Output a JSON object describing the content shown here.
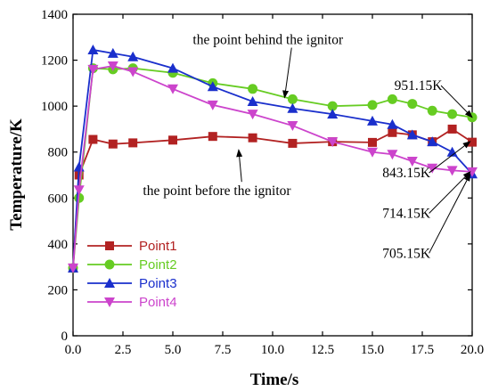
{
  "chart_data": {
    "type": "line",
    "xlabel": "Time/s",
    "ylabel": "Temperature/K",
    "xlim": [
      0,
      20
    ],
    "ylim": [
      0,
      1400
    ],
    "xticks": [
      0.0,
      2.5,
      5.0,
      7.5,
      10.0,
      12.5,
      15.0,
      17.5,
      20.0
    ],
    "xtick_labels": [
      "0.0",
      "2.5",
      "5.0",
      "7.5",
      "10.0",
      "12.5",
      "15.0",
      "17.5",
      "20.0"
    ],
    "yticks": [
      0,
      200,
      400,
      600,
      800,
      1000,
      1200,
      1400
    ],
    "ytick_labels": [
      "0",
      "200",
      "400",
      "600",
      "800",
      "1000",
      "1200",
      "1400"
    ],
    "grid": false,
    "legend_position": "bottom-left",
    "series": [
      {
        "name": "Point1",
        "color": "#b22222",
        "marker": "square",
        "x": [
          0,
          0.3,
          1,
          2,
          3,
          5,
          7,
          9,
          11,
          13,
          15,
          16,
          17,
          18,
          19,
          20
        ],
        "y": [
          295,
          700,
          855,
          835,
          840,
          852,
          868,
          862,
          838,
          845,
          842,
          885,
          875,
          845,
          900,
          843
        ]
      },
      {
        "name": "Point2",
        "color": "#66cc22",
        "marker": "circle",
        "x": [
          0,
          0.3,
          1,
          2,
          3,
          5,
          7,
          9,
          11,
          13,
          15,
          16,
          17,
          18,
          19,
          20
        ],
        "y": [
          295,
          600,
          1165,
          1160,
          1165,
          1145,
          1100,
          1075,
          1030,
          1000,
          1005,
          1030,
          1010,
          980,
          965,
          951
        ]
      },
      {
        "name": "Point3",
        "color": "#1a2fcc",
        "marker": "triangle-up",
        "x": [
          0,
          0.3,
          1,
          2,
          3,
          5,
          7,
          9,
          11,
          13,
          15,
          16,
          17,
          18,
          19,
          20
        ],
        "y": [
          295,
          735,
          1245,
          1230,
          1215,
          1165,
          1085,
          1020,
          990,
          965,
          935,
          920,
          875,
          845,
          800,
          705
        ]
      },
      {
        "name": "Point4",
        "color": "#cc44cc",
        "marker": "triangle-down",
        "x": [
          0,
          0.3,
          1,
          2,
          3,
          5,
          7,
          9,
          11,
          13,
          15,
          16,
          17,
          18,
          19,
          20
        ],
        "y": [
          295,
          635,
          1160,
          1175,
          1150,
          1075,
          1005,
          965,
          915,
          845,
          800,
          790,
          760,
          730,
          720,
          714
        ]
      }
    ],
    "annotations": [
      {
        "text": "the point behind the ignitor",
        "x": 6.0,
        "y": 1270,
        "target": [
          10.6,
          1037
        ]
      },
      {
        "text": "the point before the ignitor",
        "x": 3.5,
        "y": 612,
        "target": [
          8.3,
          810
        ]
      },
      {
        "text": "951.15K",
        "x": 16.1,
        "y": 1070,
        "target": [
          20,
          951
        ]
      },
      {
        "text": "843.15K",
        "x": 15.5,
        "y": 690,
        "target": [
          19.9,
          846
        ]
      },
      {
        "text": "714.15K",
        "x": 15.5,
        "y": 514,
        "target": [
          19.9,
          714
        ]
      },
      {
        "text": "705.15K",
        "x": 15.5,
        "y": 340,
        "target": [
          19.9,
          705
        ]
      }
    ]
  }
}
